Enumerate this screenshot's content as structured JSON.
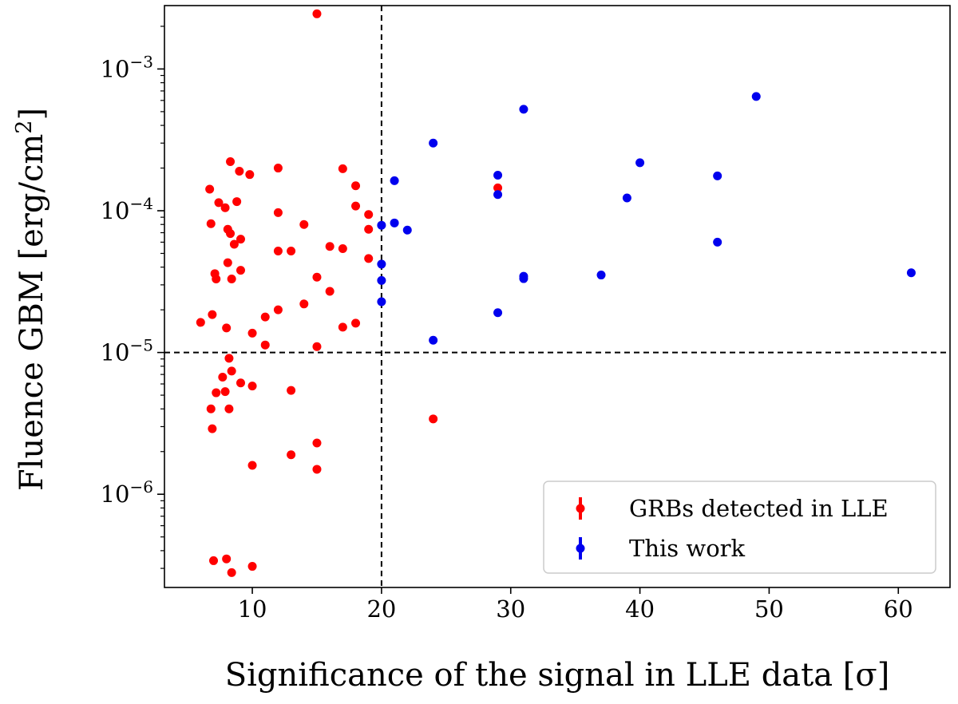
{
  "chart_data": {
    "type": "scatter",
    "xlabel": "Significance of the signal in LLE data [σ]",
    "ylabel": "Fluence GBM [erg/cm²]",
    "ylabel_parts": {
      "main": "Fluence GBM [erg/cm",
      "sup": "2",
      "end": "]"
    },
    "xlim": [
      3.2,
      64
    ],
    "ylim": [
      2.2e-07,
      0.0028
    ],
    "yscale": "log",
    "x_ticks": [
      10,
      20,
      30,
      40,
      50,
      60
    ],
    "y_ticks": [
      {
        "value": 1e-06,
        "base": "10",
        "exp": "−6"
      },
      {
        "value": 1e-05,
        "base": "10",
        "exp": "−5"
      },
      {
        "value": 0.0001,
        "base": "10",
        "exp": "−4"
      },
      {
        "value": 0.001,
        "base": "10",
        "exp": "−3"
      }
    ],
    "reference_lines": {
      "x": 20,
      "y": 1e-05,
      "style": "dashed"
    },
    "grid": false,
    "legend_position": "lower-right",
    "colors": {
      "red": "#ff0000",
      "blue": "#0000ee"
    },
    "series": [
      {
        "name": "GRBs detected in LLE",
        "color": "#ff0000",
        "points": [
          [
            15,
            0.00245
          ],
          [
            8.3,
            0.000222
          ],
          [
            9,
            0.00019
          ],
          [
            9.8,
            0.00018
          ],
          [
            12,
            0.0002
          ],
          [
            17,
            0.000198
          ],
          [
            6.7,
            0.000142
          ],
          [
            7.4,
            0.000114
          ],
          [
            8.8,
            0.000116
          ],
          [
            7.9,
            0.000105
          ],
          [
            18,
            0.00015
          ],
          [
            18,
            0.000108
          ],
          [
            12,
            9.7e-05
          ],
          [
            19,
            9.4e-05
          ],
          [
            6.8,
            8.1e-05
          ],
          [
            14,
            8e-05
          ],
          [
            8.1,
            7.4e-05
          ],
          [
            8.3,
            6.9e-05
          ],
          [
            9.1,
            6.3e-05
          ],
          [
            8.6,
            5.8e-05
          ],
          [
            16,
            5.6e-05
          ],
          [
            17,
            5.4e-05
          ],
          [
            12,
            5.2e-05
          ],
          [
            13,
            5.2e-05
          ],
          [
            19,
            7.4e-05
          ],
          [
            19,
            4.6e-05
          ],
          [
            8.1,
            4.3e-05
          ],
          [
            9.1,
            3.8e-05
          ],
          [
            7.1,
            3.6e-05
          ],
          [
            7.2,
            3.3e-05
          ],
          [
            8.4,
            3.3e-05
          ],
          [
            15,
            3.4e-05
          ],
          [
            16,
            2.7e-05
          ],
          [
            14,
            2.2e-05
          ],
          [
            12,
            2e-05
          ],
          [
            6.9,
            1.85e-05
          ],
          [
            6,
            1.63e-05
          ],
          [
            11,
            1.78e-05
          ],
          [
            18,
            1.61e-05
          ],
          [
            17,
            1.51e-05
          ],
          [
            8,
            1.49e-05
          ],
          [
            10,
            1.37e-05
          ],
          [
            11,
            1.13e-05
          ],
          [
            15,
            1.1e-05
          ],
          [
            8.2,
            9.1e-06
          ],
          [
            8.4,
            7.4e-06
          ],
          [
            7.7,
            6.7e-06
          ],
          [
            9.1,
            6.1e-06
          ],
          [
            10,
            5.8e-06
          ],
          [
            7.2,
            5.2e-06
          ],
          [
            7.9,
            5.3e-06
          ],
          [
            13,
            5.4e-06
          ],
          [
            6.8,
            4e-06
          ],
          [
            8.2,
            4e-06
          ],
          [
            6.9,
            2.9e-06
          ],
          [
            24,
            3.4e-06
          ],
          [
            15,
            2.3e-06
          ],
          [
            13,
            1.9e-06
          ],
          [
            10,
            1.6e-06
          ],
          [
            15,
            1.5e-06
          ],
          [
            7,
            3.4e-07
          ],
          [
            8,
            3.5e-07
          ],
          [
            10,
            3.1e-07
          ],
          [
            8.4,
            2.8e-07
          ],
          [
            29,
            0.000145
          ]
        ]
      },
      {
        "name": "This work",
        "color": "#0000ee",
        "points": [
          [
            49,
            0.00064
          ],
          [
            31,
            0.00052
          ],
          [
            24,
            0.0003
          ],
          [
            40,
            0.000218
          ],
          [
            29,
            0.000178
          ],
          [
            46,
            0.000176
          ],
          [
            21,
            0.000163
          ],
          [
            29,
            0.00013
          ],
          [
            39,
            0.000123
          ],
          [
            20,
            7.9e-05
          ],
          [
            21,
            8.2e-05
          ],
          [
            22,
            7.3e-05
          ],
          [
            46,
            6e-05
          ],
          [
            20,
            4.2e-05
          ],
          [
            61,
            3.65e-05
          ],
          [
            37,
            3.52e-05
          ],
          [
            31,
            3.45e-05
          ],
          [
            31,
            3.32e-05
          ],
          [
            20,
            3.22e-05
          ],
          [
            20,
            2.28e-05
          ],
          [
            29,
            1.91e-05
          ],
          [
            24,
            1.22e-05
          ]
        ]
      }
    ]
  }
}
